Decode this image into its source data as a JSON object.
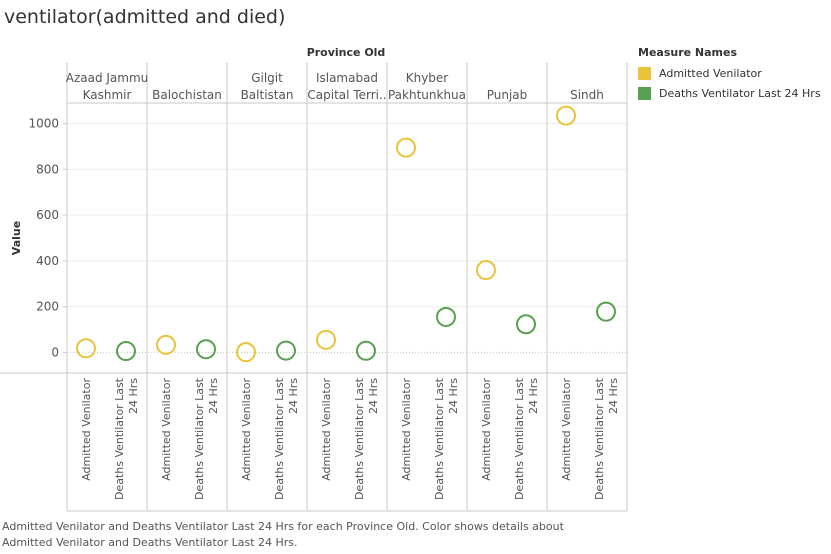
{
  "title": "ventilator(admitted and died)",
  "header_title": "Province Old",
  "legend": {
    "title": "Measure Names",
    "items": [
      {
        "label": "Admitted Venilator",
        "color": "#e8c33c"
      },
      {
        "label": "Deaths Ventilator Last 24 Hrs",
        "color": "#57a04f"
      }
    ]
  },
  "caption": "Admitted Venilator and Deaths Ventilator Last 24 Hrs for each Province Old.  Color shows details about Admitted Venilator and Deaths Ventilator Last 24 Hrs.",
  "chart_data": {
    "type": "scatter",
    "ylabel": "Value",
    "ylim": [
      -90,
      1090
    ],
    "yticks": [
      0,
      200,
      400,
      600,
      800,
      1000
    ],
    "grid": true,
    "legend_position": "right",
    "categories": [
      {
        "lines": [
          "Azaad Jammu",
          "Kashmir"
        ],
        "values": [
          18,
          6
        ]
      },
      {
        "lines": [
          "",
          "Balochistan"
        ],
        "values": [
          33,
          14
        ]
      },
      {
        "lines": [
          "Gilgit",
          "Baltistan"
        ],
        "values": [
          1,
          8
        ]
      },
      {
        "lines": [
          "Islamabad",
          "Capital Terri.."
        ],
        "values": [
          55,
          7
        ]
      },
      {
        "lines": [
          "Khyber",
          "Pakhtunkhua"
        ],
        "values": [
          895,
          155
        ]
      },
      {
        "lines": [
          "",
          "Punjab"
        ],
        "values": [
          360,
          123
        ]
      },
      {
        "lines": [
          "",
          "Sindh"
        ],
        "values": [
          1035,
          178
        ]
      }
    ],
    "x_labels": [
      {
        "lines": [
          "Admitted Venilator"
        ]
      },
      {
        "lines": [
          "Deaths Ventilator Last",
          "24 Hrs"
        ]
      }
    ],
    "colors": [
      "#e8c33c",
      "#57a04f"
    ]
  }
}
